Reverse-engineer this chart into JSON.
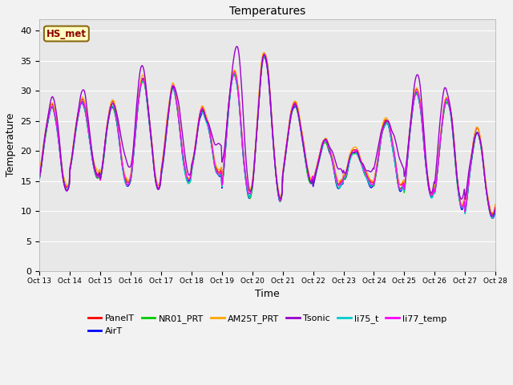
{
  "title": "Temperatures",
  "xlabel": "Time",
  "ylabel": "Temperature",
  "ylim": [
    0,
    42
  ],
  "yticks": [
    0,
    5,
    10,
    15,
    20,
    25,
    30,
    35,
    40
  ],
  "xtick_labels": [
    "Oct 13",
    "Oct 14",
    "Oct 15",
    "Oct 16",
    "Oct 17",
    "Oct 18",
    "Oct 19",
    "Oct 20",
    "Oct 21",
    "Oct 22",
    "Oct 23",
    "Oct 24",
    "Oct 25",
    "Oct 26",
    "Oct 27",
    "Oct 28"
  ],
  "annotation_text": "HS_met",
  "annotation_color": "#8B0000",
  "annotation_bg": "#FFFFC0",
  "annotation_border": "#8B6914",
  "series_colors": {
    "PanelT": "#FF0000",
    "AirT": "#0000FF",
    "NR01_PRT": "#00CC00",
    "AM25T_PRT": "#FFA500",
    "Tsonic": "#9900CC",
    "li75_t": "#00CCCC",
    "li77_temp": "#FF00FF"
  },
  "bg_color": "#E8E8E8",
  "grid_color": "#FFFFFF",
  "title_fontsize": 10,
  "axis_fontsize": 9,
  "tick_fontsize": 8,
  "legend_fontsize": 8
}
